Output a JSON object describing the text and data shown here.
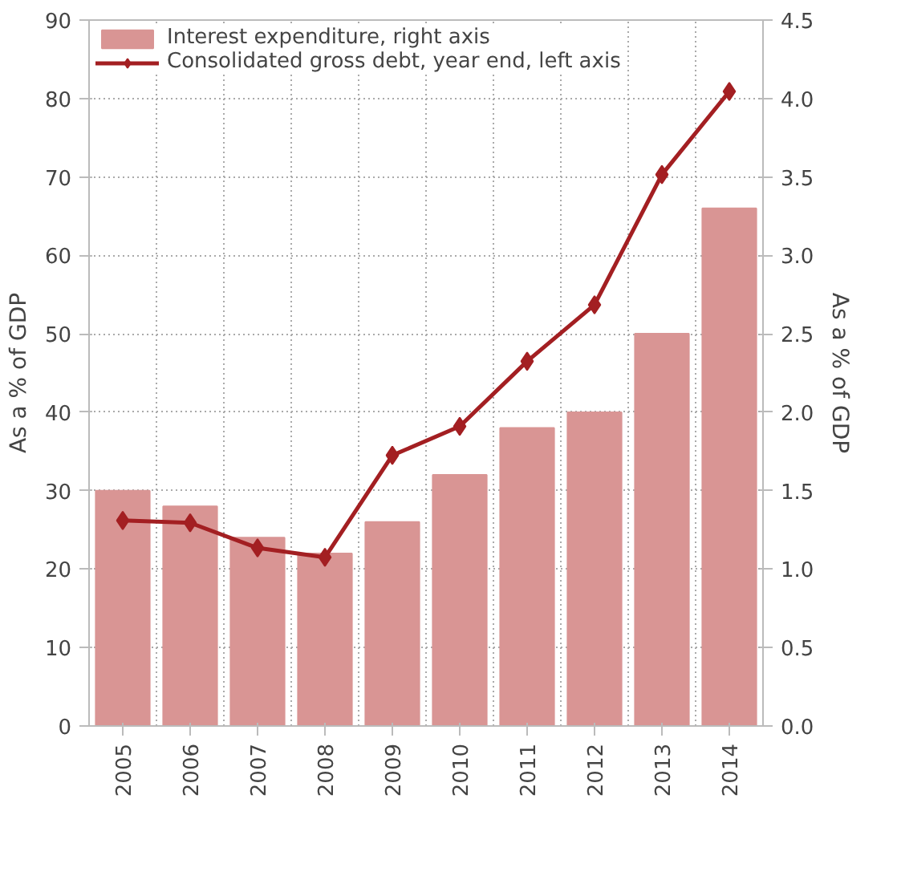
{
  "chart_data": {
    "type": "bar",
    "categories": [
      "2005",
      "2006",
      "2007",
      "2008",
      "2009",
      "2010",
      "2011",
      "2012",
      "2013",
      "2014"
    ],
    "series": [
      {
        "name": "Interest expenditure, right axis",
        "axis": "y2",
        "color": "#d99594",
        "values": [
          1.5,
          1.4,
          1.2,
          1.1,
          1.3,
          1.6,
          1.9,
          2.0,
          2.5,
          3.3
        ]
      },
      {
        "name": "Consolidated gross debt, year end, left axis",
        "type": "line",
        "color": "#a31f22",
        "marker": "diamond",
        "values": [
          26.2,
          25.9,
          22.7,
          21.5,
          34.5,
          38.2,
          46.5,
          53.7,
          70.3,
          80.9
        ]
      }
    ],
    "ylabel": "As a % of GDP",
    "y2label": "As a % of GDP",
    "ylim": [
      0,
      90
    ],
    "yticks": [
      0,
      10,
      20,
      30,
      40,
      50,
      60,
      70,
      80,
      90
    ],
    "y2lim": [
      0,
      4.5
    ],
    "y2ticks": [
      {
        "value": 0,
        "label": "0.0"
      },
      {
        "value": 0.5,
        "label": "0.5"
      },
      {
        "value": 1,
        "label": "1.0"
      },
      {
        "value": 1.5,
        "label": "1.5"
      },
      {
        "value": 2,
        "label": "2.0"
      },
      {
        "value": 2.5,
        "label": "2.5"
      },
      {
        "value": 3,
        "label": "3.0"
      },
      {
        "value": 3.5,
        "label": "3.5"
      },
      {
        "value": 4,
        "label": "4.0"
      },
      {
        "value": 4.5,
        "label": "4.5"
      }
    ],
    "grid": true,
    "legend": "top"
  }
}
